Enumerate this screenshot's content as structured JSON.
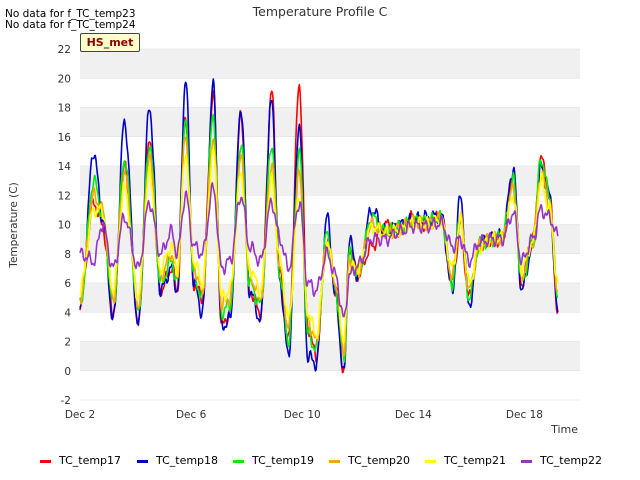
{
  "no_data_notes": [
    "No data for f_TC_temp23",
    "No data for f_TC_temp24"
  ],
  "site_label": "HS_met",
  "chart_data": {
    "type": "line",
    "title": "Temperature Profile C",
    "xlabel": "Time",
    "ylabel": "Temperature (C)",
    "ylim": [
      -2,
      22
    ],
    "yticks": [
      -2,
      0,
      2,
      4,
      6,
      8,
      10,
      12,
      14,
      16,
      18,
      20,
      22
    ],
    "xlim": [
      2.0,
      20.0
    ],
    "xticks": [
      {
        "day": 2,
        "label": "Dec 2"
      },
      {
        "day": 6,
        "label": "Dec 6"
      },
      {
        "day": 10,
        "label": "Dec 10"
      },
      {
        "day": 14,
        "label": "Dec 14"
      },
      {
        "day": 18,
        "label": "Dec 18"
      }
    ],
    "grid": "horizontal alternating bands",
    "legend_position": "bottom",
    "series": [
      {
        "name": "TC_temp17",
        "color": "#ff0000"
      },
      {
        "name": "TC_temp18",
        "color": "#0000cc"
      },
      {
        "name": "TC_temp19",
        "color": "#00ee00"
      },
      {
        "name": "TC_temp20",
        "color": "#ffa500"
      },
      {
        "name": "TC_temp21",
        "color": "#ffff00"
      },
      {
        "name": "TC_temp22",
        "color": "#9932cc"
      }
    ],
    "anchors": {
      "x": [
        2.0,
        2.5,
        2.8,
        3.2,
        3.6,
        4.1,
        4.5,
        4.9,
        5.3,
        5.5,
        5.8,
        6.1,
        6.4,
        6.8,
        7.1,
        7.4,
        7.8,
        8.1,
        8.5,
        8.9,
        9.2,
        9.5,
        9.9,
        10.2,
        10.5,
        10.9,
        11.2,
        11.5,
        11.7,
        12.0,
        12.5,
        13.0,
        13.5,
        14.0,
        14.5,
        15.0,
        15.4,
        15.7,
        16.0,
        16.4,
        16.8,
        17.2,
        17.6,
        17.9,
        18.3,
        18.6,
        18.9,
        19.2
      ],
      "TC_temp17": [
        4.5,
        11.5,
        10.0,
        4.0,
        14.0,
        3.5,
        15.5,
        5.5,
        7.0,
        5.5,
        17.5,
        6.0,
        5.0,
        19.0,
        3.0,
        4.0,
        17.5,
        5.5,
        4.0,
        19.0,
        6.5,
        2.0,
        19.5,
        3.0,
        1.0,
        9.0,
        5.5,
        0.0,
        8.5,
        6.5,
        8.5,
        10.0,
        9.5,
        10.5,
        10.0,
        10.5,
        6.0,
        10.0,
        5.0,
        8.5,
        9.0,
        9.0,
        13.0,
        6.0,
        9.0,
        14.5,
        12.0,
        4.0
      ],
      "TC_temp18": [
        4.0,
        15.0,
        10.5,
        3.5,
        17.0,
        3.0,
        18.0,
        5.5,
        7.0,
        5.5,
        20.0,
        6.0,
        4.0,
        19.5,
        3.0,
        3.5,
        18.0,
        5.5,
        3.5,
        18.5,
        6.0,
        1.0,
        17.0,
        1.0,
        0.5,
        10.5,
        5.0,
        -0.3,
        9.0,
        6.5,
        11.0,
        9.5,
        10.0,
        10.3,
        10.5,
        10.6,
        5.5,
        12.0,
        4.5,
        8.8,
        9.0,
        9.2,
        13.8,
        5.5,
        8.5,
        14.0,
        12.0,
        4.0
      ],
      "TC_temp19": [
        4.5,
        13.0,
        10.8,
        4.5,
        14.5,
        4.0,
        15.5,
        6.0,
        7.5,
        6.0,
        17.0,
        6.5,
        5.0,
        17.5,
        4.0,
        4.5,
        15.5,
        6.0,
        4.5,
        15.5,
        6.5,
        2.0,
        15.0,
        2.5,
        1.5,
        9.5,
        5.5,
        0.8,
        8.0,
        6.5,
        10.5,
        9.5,
        9.8,
        10.3,
        10.2,
        10.5,
        6.0,
        10.8,
        5.0,
        8.7,
        9.0,
        9.2,
        13.0,
        6.0,
        8.8,
        14.5,
        12.0,
        5.0
      ],
      "TC_temp20": [
        5.0,
        12.0,
        11.0,
        5.0,
        13.5,
        4.5,
        14.5,
        6.5,
        8.0,
        6.5,
        16.0,
        7.0,
        5.5,
        16.0,
        4.5,
        5.0,
        14.5,
        6.5,
        5.0,
        14.0,
        7.0,
        3.0,
        13.5,
        3.5,
        2.0,
        9.0,
        6.0,
        1.5,
        7.5,
        6.8,
        10.0,
        9.5,
        9.7,
        10.2,
        10.1,
        10.4,
        6.5,
        10.5,
        5.5,
        8.6,
        9.0,
        9.1,
        12.5,
        6.5,
        8.8,
        13.5,
        11.5,
        5.5
      ],
      "TC_temp21": [
        5.5,
        11.0,
        11.0,
        5.5,
        12.5,
        5.0,
        13.5,
        7.0,
        8.5,
        7.0,
        15.0,
        7.5,
        6.0,
        15.0,
        5.0,
        5.5,
        13.5,
        7.0,
        5.5,
        13.0,
        7.5,
        3.5,
        12.0,
        4.0,
        2.5,
        8.5,
        6.5,
        2.0,
        7.0,
        7.0,
        9.8,
        9.4,
        9.6,
        10.1,
        10.0,
        10.3,
        7.0,
        10.2,
        6.0,
        8.5,
        9.0,
        9.0,
        12.0,
        7.0,
        8.8,
        13.0,
        11.0,
        6.0
      ],
      "TC_temp22": [
        8.0,
        7.5,
        10.0,
        7.0,
        10.5,
        7.0,
        11.5,
        8.0,
        9.5,
        8.0,
        12.0,
        8.5,
        8.0,
        12.5,
        7.0,
        7.5,
        12.0,
        8.5,
        7.5,
        11.5,
        9.0,
        7.0,
        11.5,
        6.0,
        5.5,
        8.0,
        6.5,
        3.5,
        6.5,
        7.2,
        9.0,
        9.0,
        9.5,
        9.9,
        9.9,
        10.1,
        8.5,
        9.0,
        7.5,
        8.8,
        9.0,
        9.0,
        10.8,
        7.5,
        9.0,
        11.0,
        10.5,
        9.2
      ]
    }
  }
}
